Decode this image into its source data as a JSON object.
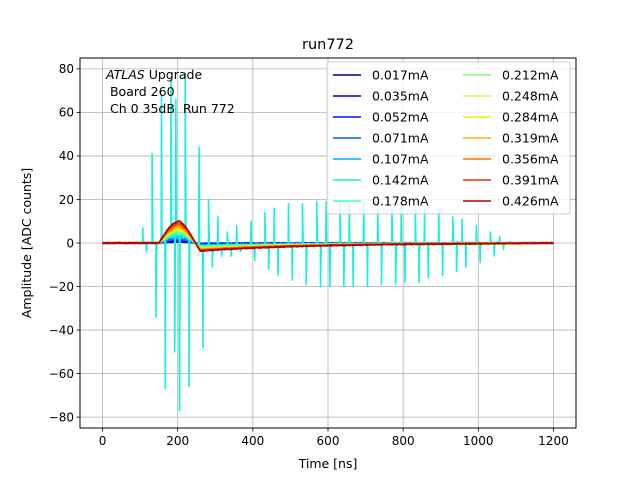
{
  "chart_data": {
    "type": "line",
    "title": "run772",
    "xlabel": "Time [ns]",
    "ylabel": "Amplitude [ADC counts]",
    "xlim": [
      -60,
      1260
    ],
    "ylim": [
      -85,
      85
    ],
    "xticks": [
      0,
      200,
      400,
      600,
      800,
      1000,
      1200
    ],
    "yticks": [
      -80,
      -60,
      -40,
      -20,
      0,
      20,
      40,
      60,
      80
    ],
    "grid": true,
    "legend_position": "top-right",
    "legend_columns": 2,
    "annotation": {
      "line1_italic": "ATLAS",
      "line1_rest": " Upgrade",
      "line2": " Board 260",
      "line3": " Ch 0 35dB  Run 772"
    },
    "series": [
      {
        "name": "0.017mA",
        "color": "#00007f",
        "pulse_peak": 0.5,
        "undershoot": -0.2
      },
      {
        "name": "0.035mA",
        "color": "#0000c8",
        "pulse_peak": 0.9,
        "undershoot": -0.35
      },
      {
        "name": "0.052mA",
        "color": "#0010ff",
        "pulse_peak": 1.3,
        "undershoot": -0.5
      },
      {
        "name": "0.071mA",
        "color": "#0060ff",
        "pulse_peak": 1.8,
        "undershoot": -0.7
      },
      {
        "name": "0.107mA",
        "color": "#00a8ff",
        "pulse_peak": 2.8,
        "undershoot": -1.0
      },
      {
        "name": "0.142mA",
        "color": "#15f0e0",
        "pulse_peak": 3.5,
        "undershoot": -1.3,
        "oscillation": {
          "period_ns": 25,
          "peaks": [
            {
              "t": 112,
              "max": 7,
              "min": -4
            },
            {
              "t": 137,
              "max": 41,
              "min": -34
            },
            {
              "t": 162,
              "max": 68,
              "min": -67
            },
            {
              "t": 187,
              "max": 75,
              "min": -50
            },
            {
              "t": 200,
              "max": 66,
              "min": -77
            },
            {
              "t": 225,
              "max": 78,
              "min": -66
            },
            {
              "t": 262,
              "max": 44,
              "min": -48
            },
            {
              "t": 287,
              "max": 20,
              "min": -11
            },
            {
              "t": 312,
              "max": 12,
              "min": -6
            },
            {
              "t": 337,
              "max": 5,
              "min": -6
            },
            {
              "t": 362,
              "max": 8,
              "min": -4
            },
            {
              "t": 400,
              "max": 10,
              "min": -8
            },
            {
              "t": 437,
              "max": 14,
              "min": -12
            },
            {
              "t": 462,
              "max": 16,
              "min": -15
            },
            {
              "t": 500,
              "max": 18,
              "min": -17
            },
            {
              "t": 537,
              "max": 18,
              "min": -19
            },
            {
              "t": 575,
              "max": 19,
              "min": -20
            },
            {
              "t": 600,
              "max": 19,
              "min": -20
            },
            {
              "t": 637,
              "max": 19,
              "min": -20
            },
            {
              "t": 662,
              "max": 18,
              "min": -20
            },
            {
              "t": 700,
              "max": 19,
              "min": -20
            },
            {
              "t": 737,
              "max": 18,
              "min": -19
            },
            {
              "t": 775,
              "max": 18,
              "min": -19
            },
            {
              "t": 800,
              "max": 18,
              "min": -18
            },
            {
              "t": 837,
              "max": 17,
              "min": -18
            },
            {
              "t": 862,
              "max": 16,
              "min": -16
            },
            {
              "t": 900,
              "max": 14,
              "min": -15
            },
            {
              "t": 937,
              "max": 12,
              "min": -13
            },
            {
              "t": 962,
              "max": 11,
              "min": -11
            },
            {
              "t": 1000,
              "max": 8,
              "min": -9
            },
            {
              "t": 1037,
              "max": 5,
              "min": -6
            },
            {
              "t": 1062,
              "max": 3,
              "min": -3
            }
          ]
        }
      },
      {
        "name": "0.178mA",
        "color": "#47ffb0",
        "pulse_peak": 4.3,
        "undershoot": -1.6
      },
      {
        "name": "0.212mA",
        "color": "#7dff7a",
        "pulse_peak": 5.0,
        "undershoot": -1.9
      },
      {
        "name": "0.248mA",
        "color": "#b7ff40",
        "pulse_peak": 5.8,
        "undershoot": -2.2
      },
      {
        "name": "0.284mA",
        "color": "#f0f000",
        "pulse_peak": 6.5,
        "undershoot": -2.5
      },
      {
        "name": "0.319mA",
        "color": "#ffb000",
        "pulse_peak": 7.3,
        "undershoot": -2.8
      },
      {
        "name": "0.356mA",
        "color": "#ff7000",
        "pulse_peak": 8.1,
        "undershoot": -3.1
      },
      {
        "name": "0.391mA",
        "color": "#f03000",
        "pulse_peak": 9.0,
        "undershoot": -3.4
      },
      {
        "name": "0.426mA",
        "color": "#b00000",
        "pulse_peak": 10.0,
        "undershoot": -3.7
      }
    ]
  }
}
